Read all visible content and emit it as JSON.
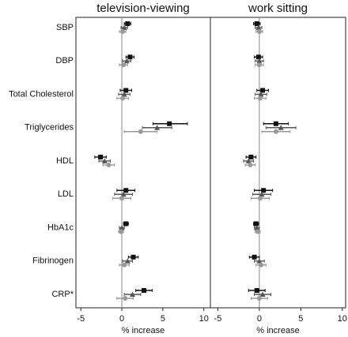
{
  "chart_data": [
    {
      "type": "forest",
      "title": "television-viewing",
      "xlabel": "% increase",
      "categories": [
        "SBP",
        "DBP",
        "Total Cholesterol",
        "Triglycerides",
        "HDL",
        "LDL",
        "HbA1c",
        "Fibrinogen",
        "CRP*"
      ],
      "xlim": [
        -5.6,
        10.8
      ],
      "xticks": [
        -5,
        0,
        5,
        10
      ],
      "series": [
        {
          "color": "#111111",
          "marker": "square",
          "values": [
            0.7,
            1.0,
            0.5,
            5.8,
            -2.6,
            0.5,
            0.5,
            1.4,
            2.7
          ],
          "lower": [
            0.3,
            0.5,
            -0.2,
            3.8,
            -3.3,
            -0.6,
            0.2,
            0.8,
            1.7
          ],
          "upper": [
            1.1,
            1.5,
            1.2,
            8.0,
            -1.9,
            1.6,
            0.8,
            2.0,
            3.7
          ]
        },
        {
          "color": "#555555",
          "marker": "triangle",
          "values": [
            0.3,
            0.6,
            0.3,
            4.3,
            -2.1,
            0.2,
            0.0,
            0.7,
            1.3
          ],
          "lower": [
            -0.1,
            0.1,
            -0.4,
            2.5,
            -2.8,
            -0.9,
            -0.3,
            0.1,
            0.3
          ],
          "upper": [
            0.7,
            1.1,
            1.0,
            6.1,
            -1.4,
            1.3,
            0.3,
            1.3,
            2.3
          ]
        },
        {
          "color": "#999999",
          "marker": "circle",
          "values": [
            0.1,
            0.2,
            0.1,
            2.3,
            -1.6,
            0.0,
            -0.1,
            0.3,
            0.4
          ],
          "lower": [
            -0.3,
            -0.3,
            -0.6,
            0.3,
            -2.3,
            -1.1,
            -0.4,
            -0.3,
            -0.6
          ],
          "upper": [
            0.5,
            0.7,
            0.8,
            4.3,
            -0.9,
            1.1,
            0.2,
            0.9,
            1.4
          ]
        }
      ]
    },
    {
      "type": "forest",
      "title": "work sitting",
      "xlabel": "% increase",
      "xlim": [
        -5.9,
        10.4
      ],
      "xticks": [
        -5,
        0,
        5,
        10
      ],
      "series": [
        {
          "color": "#111111",
          "marker": "square",
          "values": [
            -0.3,
            -0.1,
            0.4,
            2.0,
            -1.0,
            0.5,
            -0.4,
            -0.6,
            -0.3
          ],
          "lower": [
            -0.7,
            -0.6,
            -0.3,
            0.5,
            -1.6,
            -0.6,
            -0.7,
            -1.2,
            -1.3
          ],
          "upper": [
            0.1,
            0.4,
            1.1,
            3.5,
            -0.4,
            1.6,
            -0.1,
            0.0,
            0.7
          ]
        },
        {
          "color": "#555555",
          "marker": "triangle",
          "values": [
            -0.1,
            0.0,
            0.2,
            2.6,
            -1.3,
            0.3,
            -0.3,
            0.0,
            0.4
          ],
          "lower": [
            -0.5,
            -0.5,
            -0.5,
            0.8,
            -1.9,
            -0.8,
            -0.6,
            -0.6,
            -0.6
          ],
          "upper": [
            0.3,
            0.5,
            0.9,
            4.4,
            -0.7,
            1.4,
            0.0,
            0.6,
            1.4
          ]
        },
        {
          "color": "#999999",
          "marker": "circle",
          "values": [
            0.0,
            0.0,
            0.1,
            2.0,
            -1.1,
            0.1,
            -0.2,
            0.2,
            0.0
          ],
          "lower": [
            -0.4,
            -0.5,
            -0.6,
            0.3,
            -1.7,
            -1.0,
            -0.5,
            -0.4,
            -1.0
          ],
          "upper": [
            0.4,
            0.5,
            0.8,
            3.7,
            -0.5,
            1.2,
            0.1,
            0.8,
            1.0
          ]
        }
      ]
    }
  ]
}
